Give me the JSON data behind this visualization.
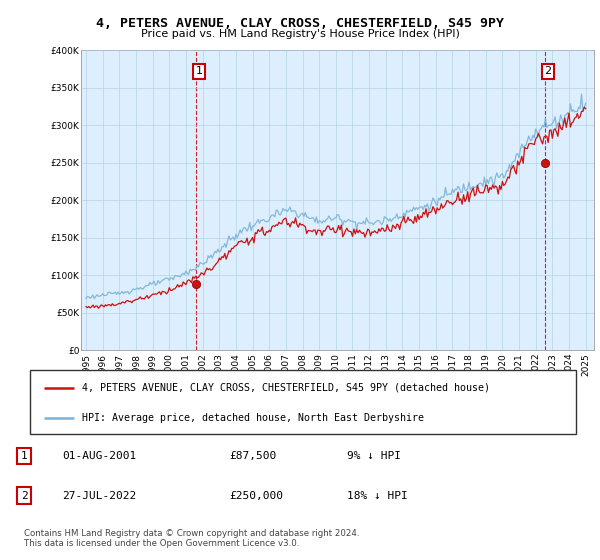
{
  "title": "4, PETERS AVENUE, CLAY CROSS, CHESTERFIELD, S45 9PY",
  "subtitle": "Price paid vs. HM Land Registry's House Price Index (HPI)",
  "legend_line1": "4, PETERS AVENUE, CLAY CROSS, CHESTERFIELD, S45 9PY (detached house)",
  "legend_line2": "HPI: Average price, detached house, North East Derbyshire",
  "transaction1_date": "01-AUG-2001",
  "transaction1_price": "£87,500",
  "transaction1_hpi": "9% ↓ HPI",
  "transaction2_date": "27-JUL-2022",
  "transaction2_price": "£250,000",
  "transaction2_hpi": "18% ↓ HPI",
  "footnote": "Contains HM Land Registry data © Crown copyright and database right 2024.\nThis data is licensed under the Open Government Licence v3.0.",
  "hpi_color": "#7ab3d4",
  "price_color": "#cc1111",
  "chart_bg": "#ddeeff",
  "annotation_box_color": "#cc0000",
  "vline_color": "#cc0000",
  "ylim": [
    0,
    400000
  ],
  "ytick_vals": [
    0,
    50000,
    100000,
    150000,
    200000,
    250000,
    300000,
    350000,
    400000
  ],
  "t1_x": 2001.583,
  "t1_y": 87500,
  "t2_x": 2022.538,
  "t2_y": 250000,
  "xmin": 1995.0,
  "xmax": 2025.5
}
